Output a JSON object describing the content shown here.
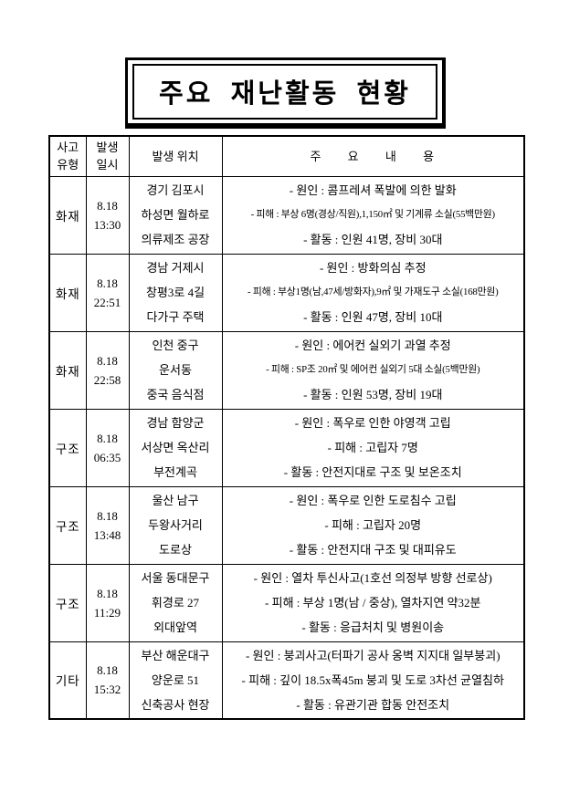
{
  "title": "주요 재난활동 현황",
  "table": {
    "headers": {
      "accident_type_line1": "사고",
      "accident_type_line2": "유형",
      "datetime_line1": "발생",
      "datetime_line2": "일시",
      "location": "발생 위치",
      "content": "주 요 내 용"
    },
    "rows": [
      {
        "type": "화재",
        "date": "8.18",
        "time": "13:30",
        "location": [
          "경기 김포시",
          "하성면 월하로",
          "의류제조 공장"
        ],
        "content": [
          "- 원인 : 콤프레셔 폭발에 의한 발화",
          "- 피해 : 부상 6명(경상/직원),1,150㎡ 및 기계류 소실(55백만원)",
          "- 활동 : 인원 41명, 장비 30대"
        ]
      },
      {
        "type": "화재",
        "date": "8.18",
        "time": "22:51",
        "location": [
          "경남 거제시",
          "창평3로 4길",
          "다가구 주택"
        ],
        "content": [
          "- 원인 : 방화의심 추정",
          "- 피해 : 부상1명(남,47세/방화자),9㎡ 및 가재도구 소실(168만원)",
          "- 활동 : 인원 47명, 장비 10대"
        ]
      },
      {
        "type": "화재",
        "date": "8.18",
        "time": "22:58",
        "location": [
          "인천 중구",
          "운서동",
          "중국 음식점"
        ],
        "content": [
          "- 원인 : 에어컨 실외기 과열 추정",
          "- 피해 : SP조 20㎡ 및 에어컨 실외기 5대 소실(5백만원)",
          "- 활동 : 인원 53명, 장비 19대"
        ]
      },
      {
        "type": "구조",
        "date": "8.18",
        "time": "06:35",
        "location": [
          "경남 함양군",
          "서상면 옥산리",
          "부전계곡"
        ],
        "content": [
          "- 원인 : 폭우로 인한 야영객 고립",
          "- 피해 : 고립자 7명",
          "- 활동 : 안전지대로 구조 및 보온조치"
        ]
      },
      {
        "type": "구조",
        "date": "8.18",
        "time": "13:48",
        "location": [
          "울산 남구",
          "두왕사거리",
          "도로상"
        ],
        "content": [
          "- 원인 : 폭우로 인한 도로침수 고립",
          "- 피해 : 고립자 20명",
          "- 활동 : 안전지대 구조 및 대피유도"
        ]
      },
      {
        "type": "구조",
        "date": "8.18",
        "time": "11:29",
        "location": [
          "서울 동대문구",
          "휘경로 27",
          "외대앞역"
        ],
        "content": [
          "- 원인 : 열차 투신사고(1호선 의정부 방향 선로상)",
          "- 피해 : 부상 1명(남 / 중상), 열차지연 약32분",
          "- 활동 : 응급처치 및 병원이송"
        ]
      },
      {
        "type": "기타",
        "date": "8.18",
        "time": "15:32",
        "location": [
          "부산 해운대구",
          "양운로 51",
          "신축공사 현장"
        ],
        "content": [
          "- 원인 : 붕괴사고(터파기 공사 옹벽 지지대 일부붕괴)",
          "- 피해 : 깊이 18.5x폭45m 붕괴 및 도로 3차선 균열침하",
          "- 활동 : 유관기관 합동 안전조치"
        ]
      }
    ]
  }
}
